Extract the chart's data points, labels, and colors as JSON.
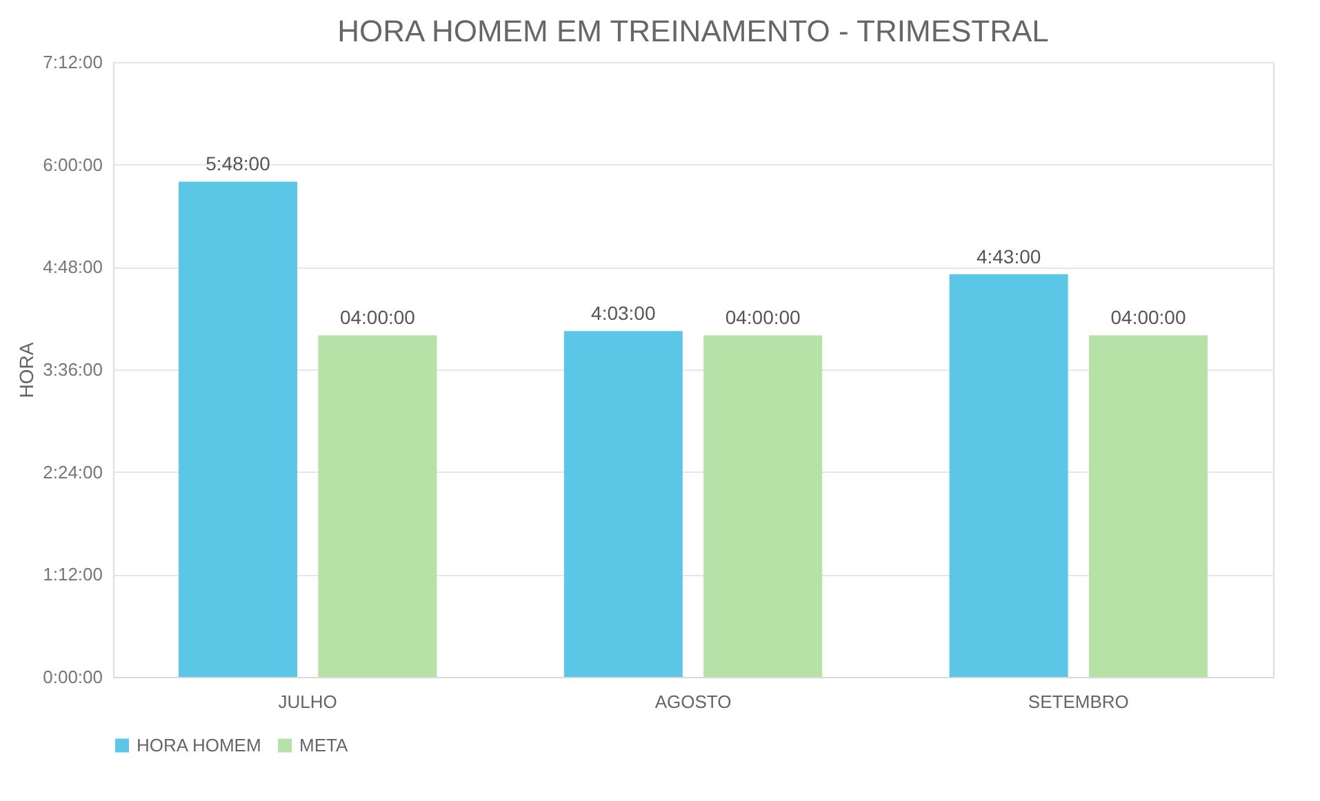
{
  "chart_data": {
    "type": "bar",
    "title": "HORA HOMEM EM TREINAMENTO - TRIMESTRAL",
    "ylabel": "HORA",
    "categories": [
      "JULHO",
      "AGOSTO",
      "SETEMBRO"
    ],
    "series": [
      {
        "name": "HORA HOMEM",
        "color": "#5cc6e6",
        "values": [
          5.8,
          4.05,
          4.7167
        ],
        "value_labels": [
          "5:48:00",
          "4:03:00",
          "4:43:00"
        ]
      },
      {
        "name": "META",
        "color": "#b6e2a8",
        "values": [
          4.0,
          4.0,
          4.0
        ],
        "value_labels": [
          "04:00:00",
          "04:00:00",
          "04:00:00"
        ]
      }
    ],
    "ylim": [
      0,
      7.2
    ],
    "yticks": [
      {
        "value": 0,
        "label": "0:00:00"
      },
      {
        "value": 1.2,
        "label": "1:12:00"
      },
      {
        "value": 2.4,
        "label": "2:24:00"
      },
      {
        "value": 3.6,
        "label": "3:36:00"
      },
      {
        "value": 4.8,
        "label": "4:48:00"
      },
      {
        "value": 6.0,
        "label": "6:00:00"
      },
      {
        "value": 7.2,
        "label": "7:12:00"
      }
    ],
    "grid": "y",
    "legend": "bottom"
  }
}
